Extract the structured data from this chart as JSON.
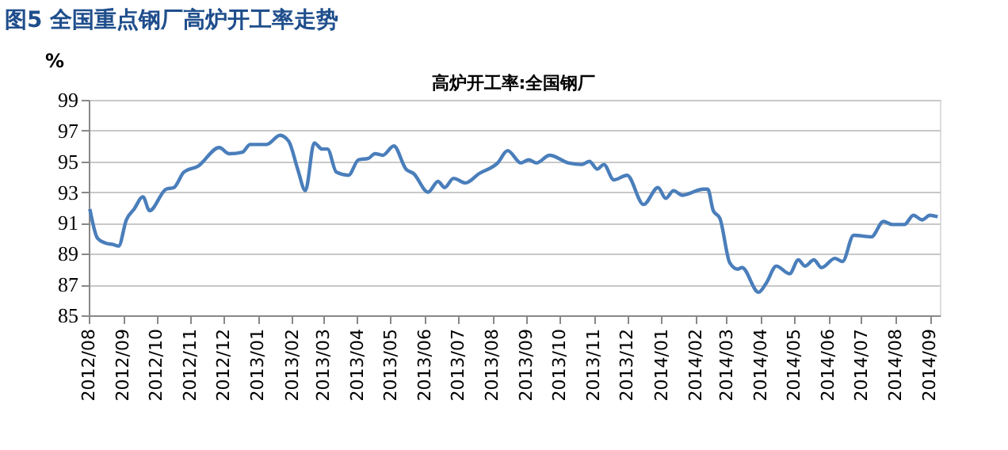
{
  "chart_data": {
    "type": "line",
    "title": "图5 全国重点钢厂高炉开工率走势",
    "subtitle": "高炉开工率:全国钢厂",
    "ylabel": "%",
    "x": [
      "2012-08-02",
      "2012-08-09",
      "2012-08-16",
      "2012-08-23",
      "2012-08-28",
      "2012-09-04",
      "2012-09-11",
      "2012-09-19",
      "2012-09-25",
      "2012-10-10",
      "2012-10-17",
      "2012-10-26",
      "2012-11-08",
      "2012-11-27",
      "2012-12-06",
      "2012-12-18",
      "2012-12-25",
      "2013-01-09",
      "2013-01-21",
      "2013-01-29",
      "2013-02-06",
      "2013-02-13",
      "2013-02-21",
      "2013-02-28",
      "2013-03-05",
      "2013-03-13",
      "2013-03-24",
      "2013-04-02",
      "2013-04-11",
      "2013-04-17",
      "2013-04-24",
      "2013-05-04",
      "2013-05-15",
      "2013-05-22",
      "2013-06-04",
      "2013-06-13",
      "2013-06-19",
      "2013-06-27",
      "2013-07-08",
      "2013-07-20",
      "2013-08-06",
      "2013-08-15",
      "2013-08-27",
      "2013-09-03",
      "2013-09-10",
      "2013-09-22",
      "2013-10-09",
      "2013-10-21",
      "2013-10-28",
      "2013-11-04",
      "2013-11-10",
      "2013-11-19",
      "2013-12-01",
      "2013-12-16",
      "2013-12-29",
      "2014-01-05",
      "2014-01-12",
      "2014-01-20",
      "2014-02-08",
      "2014-02-12",
      "2014-02-17",
      "2014-02-23",
      "2014-03-04",
      "2014-03-11",
      "2014-03-15",
      "2014-03-30",
      "2014-04-06",
      "2014-04-15",
      "2014-04-27",
      "2014-05-05",
      "2014-05-11",
      "2014-05-19",
      "2014-05-26",
      "2014-06-07",
      "2014-06-14",
      "2014-06-24",
      "2014-07-10",
      "2014-07-21",
      "2014-07-29",
      "2014-08-09",
      "2014-08-17",
      "2014-08-25",
      "2014-09-01",
      "2014-09-08"
    ],
    "series": [
      {
        "color": "#4a7ebb",
        "values": [
          91.9,
          90.0,
          89.7,
          89.6,
          89.5,
          91.2,
          91.9,
          92.7,
          91.8,
          93.2,
          93.3,
          94.3,
          94.7,
          95.9,
          95.5,
          95.6,
          96.1,
          96.1,
          96.7,
          96.3,
          94.5,
          93.1,
          96.2,
          95.8,
          95.8,
          94.3,
          94.1,
          95.1,
          95.2,
          95.5,
          95.4,
          96.0,
          94.5,
          94.2,
          93.0,
          93.7,
          93.3,
          93.9,
          93.6,
          94.2,
          94.9,
          95.7,
          94.9,
          95.1,
          94.9,
          95.4,
          94.9,
          94.8,
          95.0,
          94.5,
          94.8,
          93.8,
          94.1,
          92.2,
          93.3,
          92.6,
          93.1,
          92.8,
          93.2,
          93.2,
          91.8,
          91.3,
          88.4,
          88.0,
          88.1,
          86.5,
          87.1,
          88.2,
          87.7,
          88.6,
          88.2,
          88.6,
          88.1,
          88.7,
          88.5,
          90.2,
          90.1,
          91.1,
          90.9,
          90.9,
          91.5,
          91.2,
          91.5,
          91.4
        ]
      }
    ],
    "xlim": [
      "2012-08-01",
      "2014-09-10"
    ],
    "xticks": [
      {
        "value": "2012-08",
        "label": "2012/08"
      },
      {
        "value": "2012-09",
        "label": "2012/09"
      },
      {
        "value": "2012-10",
        "label": "2012/10"
      },
      {
        "value": "2012-11",
        "label": "2012/11"
      },
      {
        "value": "2012-12",
        "label": "2012/12"
      },
      {
        "value": "2013-01",
        "label": "2013/01"
      },
      {
        "value": "2013-02",
        "label": "2013/02"
      },
      {
        "value": "2013-03",
        "label": "2013/03"
      },
      {
        "value": "2013-04",
        "label": "2013/04"
      },
      {
        "value": "2013-05",
        "label": "2013/05"
      },
      {
        "value": "2013-06",
        "label": "2013/06"
      },
      {
        "value": "2013-07",
        "label": "2013/07"
      },
      {
        "value": "2013-08",
        "label": "2013/08"
      },
      {
        "value": "2013-09",
        "label": "2013/09"
      },
      {
        "value": "2013-10",
        "label": "2013/10"
      },
      {
        "value": "2013-11",
        "label": "2013/11"
      },
      {
        "value": "2013-12",
        "label": "2013/12"
      },
      {
        "value": "2014-01",
        "label": "2014/01"
      },
      {
        "value": "2014-02",
        "label": "2014/02"
      },
      {
        "value": "2014-03",
        "label": "2014/03"
      },
      {
        "value": "2014-04",
        "label": "2014/04"
      },
      {
        "value": "2014-05",
        "label": "2014/05"
      },
      {
        "value": "2014-06",
        "label": "2014/06"
      },
      {
        "value": "2014-07",
        "label": "2014/07"
      },
      {
        "value": "2014-08",
        "label": "2014/08"
      },
      {
        "value": "2014-09",
        "label": "2014/09"
      }
    ],
    "ylim": [
      85,
      99
    ],
    "yticks": [
      85,
      87,
      89,
      91,
      93,
      95,
      97,
      99
    ],
    "grid": "y",
    "marker": "none",
    "line_style": "solid"
  }
}
